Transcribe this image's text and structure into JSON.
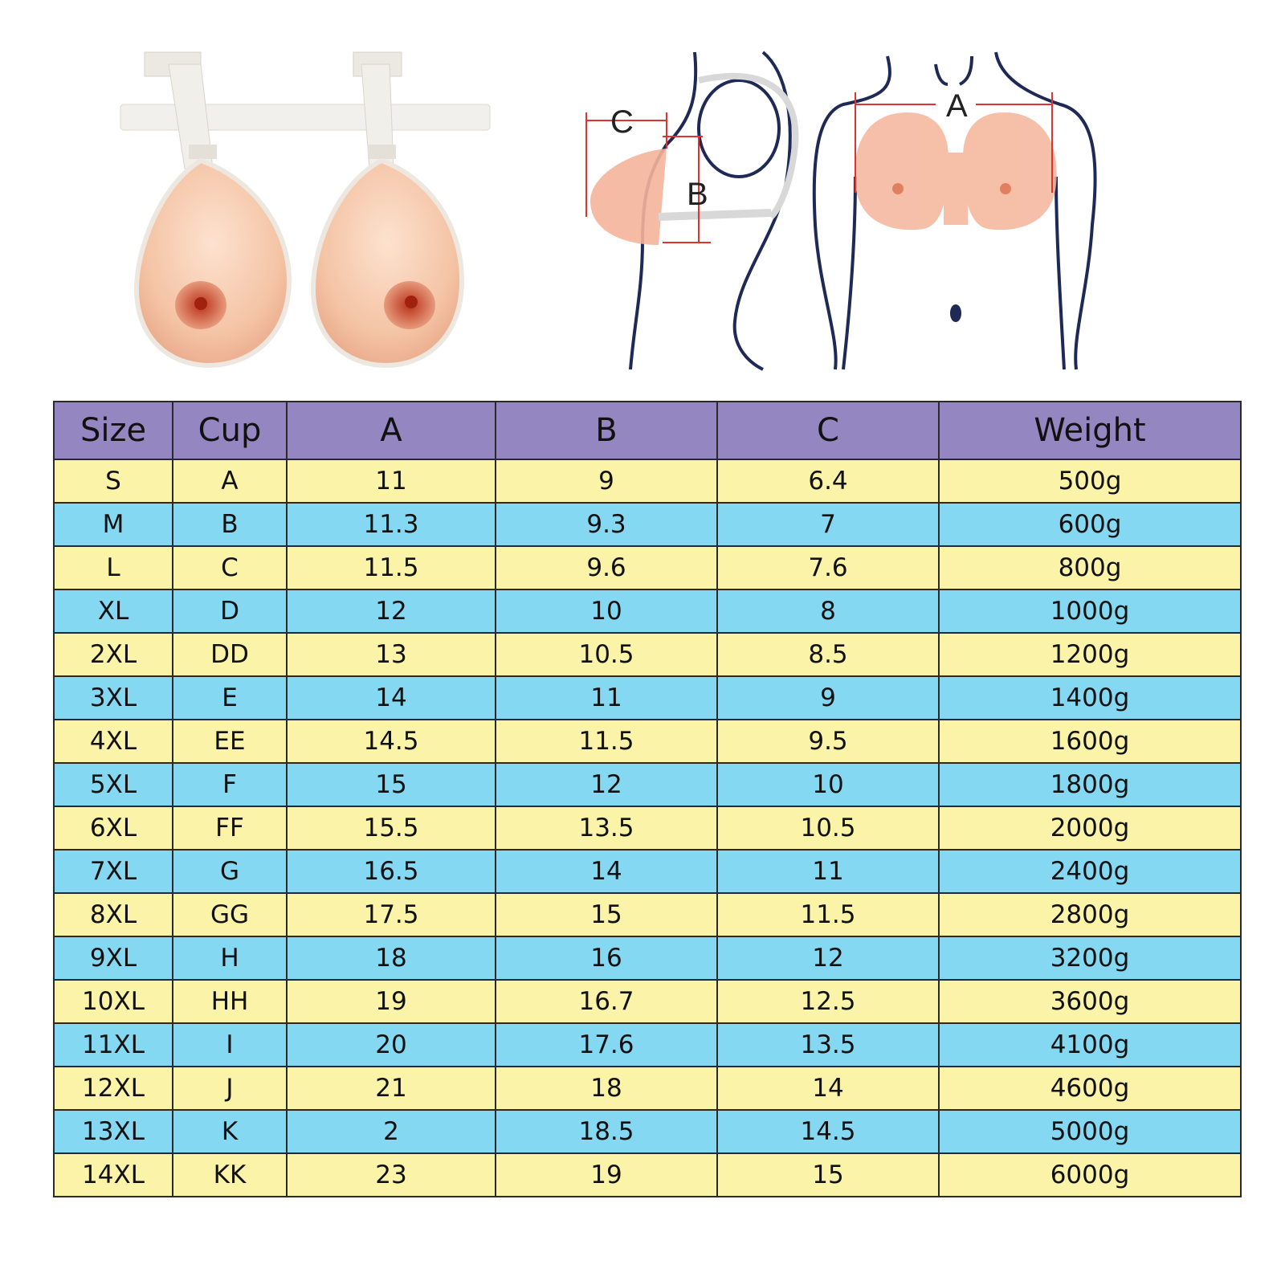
{
  "diagram_labels": {
    "a": "A",
    "b": "B",
    "c": "C"
  },
  "colors": {
    "header": "#9486c1",
    "row_yellow": "#faf3a8",
    "row_blue": "#85d8f2",
    "skin": "#f4b49a",
    "outline": "#1e2a55"
  },
  "table": {
    "headers": [
      "Size",
      "Cup",
      "A",
      "B",
      "C",
      "Weight"
    ],
    "rows": [
      [
        "S",
        "A",
        "11",
        "9",
        "6.4",
        "500g"
      ],
      [
        "M",
        "B",
        "11.3",
        "9.3",
        "7",
        "600g"
      ],
      [
        "L",
        "C",
        "11.5",
        "9.6",
        "7.6",
        "800g"
      ],
      [
        "XL",
        "D",
        "12",
        "10",
        "8",
        "1000g"
      ],
      [
        "2XL",
        "DD",
        "13",
        "10.5",
        "8.5",
        "1200g"
      ],
      [
        "3XL",
        "E",
        "14",
        "11",
        "9",
        "1400g"
      ],
      [
        "4XL",
        "EE",
        "14.5",
        "11.5",
        "9.5",
        "1600g"
      ],
      [
        "5XL",
        "F",
        "15",
        "12",
        "10",
        "1800g"
      ],
      [
        "6XL",
        "FF",
        "15.5",
        "13.5",
        "10.5",
        "2000g"
      ],
      [
        "7XL",
        "G",
        "16.5",
        "14",
        "11",
        "2400g"
      ],
      [
        "8XL",
        "GG",
        "17.5",
        "15",
        "11.5",
        "2800g"
      ],
      [
        "9XL",
        "H",
        "18",
        "16",
        "12",
        "3200g"
      ],
      [
        "10XL",
        "HH",
        "19",
        "16.7",
        "12.5",
        "3600g"
      ],
      [
        "11XL",
        "I",
        "20",
        "17.6",
        "13.5",
        "4100g"
      ],
      [
        "12XL",
        "J",
        "21",
        "18",
        "14",
        "4600g"
      ],
      [
        "13XL",
        "K",
        "2",
        "18.5",
        "14.5",
        "5000g"
      ],
      [
        "14XL",
        "KK",
        "23",
        "19",
        "15",
        "6000g"
      ]
    ]
  }
}
